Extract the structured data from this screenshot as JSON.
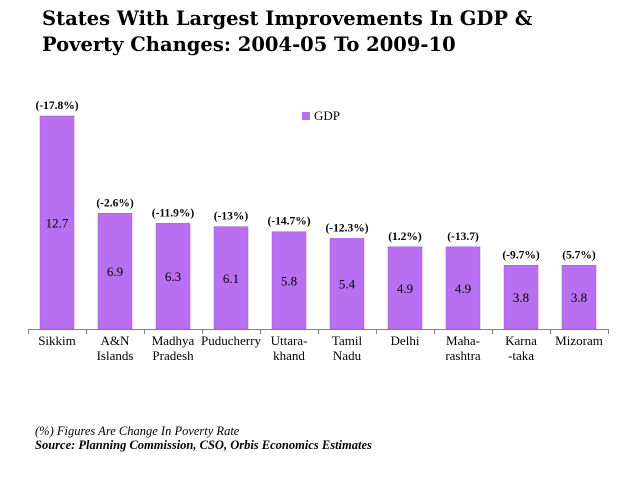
{
  "title": "States With Largest Improvements In GDP & Poverty Changes: 2004-05 To 2009-10",
  "legend_label": "GDP",
  "footnote": "(%) Figures Are Change In Poverty Rate",
  "source": "Source: Planning Commission, CSO, Orbis Economics Estimates",
  "colors": {
    "bar": "#b870f0",
    "bar_stroke": "#a055e0",
    "axis": "#808080"
  },
  "chart_data": {
    "type": "bar",
    "title": "States With Largest Improvements In GDP & Poverty Changes: 2004-05 To 2009-10",
    "categories": [
      [
        "Sikkim"
      ],
      [
        "A&N",
        "Islands"
      ],
      [
        "Madhya",
        "Pradesh"
      ],
      [
        "Puducherry"
      ],
      [
        "Uttara-",
        "khand"
      ],
      [
        "Tamil",
        "Nadu"
      ],
      [
        "Delhi"
      ],
      [
        "Maha-",
        "rashtra"
      ],
      [
        "Karna",
        "-taka"
      ],
      [
        "Mizoram"
      ]
    ],
    "series": [
      {
        "name": "GDP",
        "values": [
          12.7,
          6.9,
          6.3,
          6.1,
          5.8,
          5.4,
          4.9,
          4.9,
          3.8,
          3.8
        ]
      }
    ],
    "value_labels": [
      "12.7",
      "6.9",
      "6.3",
      "6.1",
      "5.8",
      "5.4",
      "4.9",
      "4.9",
      "3.8",
      "3.8"
    ],
    "poverty_change_labels": [
      "(-17.8%)",
      "(-2.6%)",
      "(-11.9%)",
      "(-13%)",
      "(-14.7%)",
      "(-12.3%)",
      "(1.2%)",
      "(-13.7)",
      "(-9.7%)",
      "(5.7%)"
    ],
    "ylim": [
      0,
      12.7
    ],
    "legend_position": "top-center",
    "grid": false
  }
}
